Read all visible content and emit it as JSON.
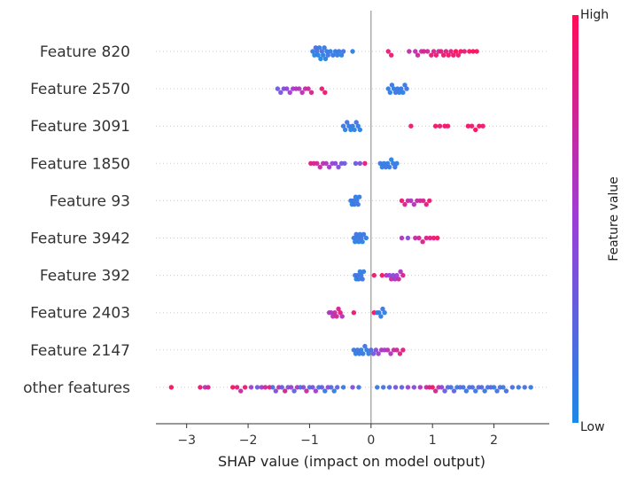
{
  "chart_data": {
    "type": "scatter",
    "subtype": "shap-beeswarm",
    "title": "",
    "xlabel": "SHAP value (impact on model output)",
    "ylabel": "",
    "xlim": [
      -3.5,
      2.9
    ],
    "xticks": [
      -3,
      -2,
      -1,
      0,
      1,
      2
    ],
    "xtick_labels": [
      "−3",
      "−2",
      "−1",
      "0",
      "1",
      "2"
    ],
    "zero_line": 0,
    "grid": false,
    "colorbar": {
      "label": "Feature value",
      "high_label": "High",
      "low_label": "Low",
      "colors": [
        "#1e88e5",
        "#ff0d57"
      ]
    },
    "features": [
      {
        "name": "Feature 820",
        "points": [
          [
            -0.95,
            0.1
          ],
          [
            -0.92,
            0.0
          ],
          [
            -0.9,
            0.2
          ],
          [
            -0.88,
            0.15
          ],
          [
            -0.86,
            0.05
          ],
          [
            -0.84,
            0.1
          ],
          [
            -0.82,
            0.0
          ],
          [
            -0.8,
            0.15
          ],
          [
            -0.78,
            0.05
          ],
          [
            -0.76,
            0.1
          ],
          [
            -0.74,
            0.05
          ],
          [
            -0.72,
            0.1
          ],
          [
            -0.7,
            0.15
          ],
          [
            -0.66,
            0.05
          ],
          [
            -0.62,
            0.1
          ],
          [
            -0.58,
            0.1
          ],
          [
            -0.55,
            0.05
          ],
          [
            -0.52,
            0.1
          ],
          [
            -0.48,
            0.05
          ],
          [
            -0.45,
            0.15
          ],
          [
            -0.3,
            0.05
          ],
          [
            0.28,
            0.85
          ],
          [
            0.33,
            0.9
          ],
          [
            0.62,
            0.7
          ],
          [
            0.72,
            0.65
          ],
          [
            0.76,
            0.75
          ],
          [
            0.82,
            0.7
          ],
          [
            0.86,
            0.8
          ],
          [
            0.92,
            0.75
          ],
          [
            0.98,
            0.85
          ],
          [
            1.02,
            0.8
          ],
          [
            1.06,
            0.9
          ],
          [
            1.1,
            0.75
          ],
          [
            1.14,
            0.85
          ],
          [
            1.18,
            0.9
          ],
          [
            1.22,
            0.8
          ],
          [
            1.26,
            0.95
          ],
          [
            1.3,
            0.85
          ],
          [
            1.34,
            0.9
          ],
          [
            1.38,
            1.0
          ],
          [
            1.42,
            0.9
          ],
          [
            1.46,
            0.95
          ],
          [
            1.52,
            0.85
          ],
          [
            1.6,
            0.95
          ],
          [
            1.66,
            1.0
          ],
          [
            1.72,
            0.95
          ]
        ]
      },
      {
        "name": "Feature 2570",
        "points": [
          [
            -1.52,
            0.3
          ],
          [
            -1.47,
            0.35
          ],
          [
            -1.42,
            0.4
          ],
          [
            -1.37,
            0.45
          ],
          [
            -1.32,
            0.5
          ],
          [
            -1.27,
            0.55
          ],
          [
            -1.22,
            0.6
          ],
          [
            -1.17,
            0.6
          ],
          [
            -1.12,
            0.65
          ],
          [
            -1.07,
            0.7
          ],
          [
            -1.02,
            0.75
          ],
          [
            -0.97,
            0.8
          ],
          [
            -0.8,
            0.9
          ],
          [
            -0.75,
            0.9
          ],
          [
            0.28,
            0.1
          ],
          [
            0.31,
            0.05
          ],
          [
            0.34,
            0.1
          ],
          [
            0.37,
            0.05
          ],
          [
            0.4,
            0.15
          ],
          [
            0.43,
            0.1
          ],
          [
            0.46,
            0.05
          ],
          [
            0.49,
            0.1
          ],
          [
            0.52,
            0.05
          ],
          [
            0.55,
            0.1
          ],
          [
            0.58,
            0.15
          ]
        ]
      },
      {
        "name": "Feature 3091",
        "points": [
          [
            -0.45,
            0.1
          ],
          [
            -0.42,
            0.05
          ],
          [
            -0.39,
            0.15
          ],
          [
            -0.36,
            0.1
          ],
          [
            -0.33,
            0.05
          ],
          [
            -0.3,
            0.1
          ],
          [
            -0.27,
            0.05
          ],
          [
            -0.24,
            0.15
          ],
          [
            -0.21,
            0.1
          ],
          [
            -0.18,
            0.05
          ],
          [
            0.65,
            0.9
          ],
          [
            1.05,
            0.95
          ],
          [
            1.12,
            0.9
          ],
          [
            1.2,
            0.95
          ],
          [
            1.25,
            0.9
          ],
          [
            1.58,
            0.95
          ],
          [
            1.64,
            0.9
          ],
          [
            1.7,
            1.0
          ],
          [
            1.76,
            0.95
          ],
          [
            1.82,
            0.9
          ]
        ]
      },
      {
        "name": "Feature 1850",
        "points": [
          [
            -0.98,
            0.85
          ],
          [
            -0.93,
            0.8
          ],
          [
            -0.88,
            0.75
          ],
          [
            -0.83,
            0.7
          ],
          [
            -0.78,
            0.65
          ],
          [
            -0.73,
            0.6
          ],
          [
            -0.68,
            0.55
          ],
          [
            -0.63,
            0.5
          ],
          [
            -0.58,
            0.45
          ],
          [
            -0.53,
            0.4
          ],
          [
            -0.48,
            0.35
          ],
          [
            -0.43,
            0.3
          ],
          [
            -0.25,
            0.3
          ],
          [
            -0.18,
            0.35
          ],
          [
            -0.1,
            0.9
          ],
          [
            0.15,
            0.1
          ],
          [
            0.18,
            0.05
          ],
          [
            0.21,
            0.1
          ],
          [
            0.24,
            0.15
          ],
          [
            0.27,
            0.05
          ],
          [
            0.3,
            0.1
          ],
          [
            0.33,
            0.05
          ],
          [
            0.36,
            0.1
          ],
          [
            0.39,
            0.15
          ],
          [
            0.42,
            0.05
          ]
        ]
      },
      {
        "name": "Feature 93",
        "points": [
          [
            -0.33,
            0.1
          ],
          [
            -0.31,
            0.05
          ],
          [
            -0.29,
            0.15
          ],
          [
            -0.27,
            0.1
          ],
          [
            -0.25,
            0.05
          ],
          [
            -0.23,
            0.1
          ],
          [
            -0.21,
            0.15
          ],
          [
            -0.19,
            0.1
          ],
          [
            0.5,
            0.9
          ],
          [
            0.55,
            0.8
          ],
          [
            0.6,
            0.7
          ],
          [
            0.65,
            0.6
          ],
          [
            0.7,
            0.65
          ],
          [
            0.75,
            0.7
          ],
          [
            0.8,
            0.75
          ],
          [
            0.85,
            0.8
          ],
          [
            0.9,
            0.85
          ],
          [
            0.95,
            0.9
          ]
        ]
      },
      {
        "name": "Feature 3942",
        "points": [
          [
            -0.28,
            0.1
          ],
          [
            -0.26,
            0.05
          ],
          [
            -0.24,
            0.15
          ],
          [
            -0.22,
            0.1
          ],
          [
            -0.2,
            0.05
          ],
          [
            -0.18,
            0.1
          ],
          [
            -0.16,
            0.15
          ],
          [
            -0.14,
            0.05
          ],
          [
            -0.12,
            0.1
          ],
          [
            -0.08,
            0.05
          ],
          [
            0.5,
            0.6
          ],
          [
            0.6,
            0.4
          ],
          [
            0.72,
            0.7
          ],
          [
            0.78,
            0.75
          ],
          [
            0.84,
            0.8
          ],
          [
            0.9,
            0.8
          ],
          [
            0.96,
            0.85
          ],
          [
            1.02,
            0.9
          ],
          [
            1.08,
            0.95
          ]
        ]
      },
      {
        "name": "Feature 392",
        "points": [
          [
            -0.26,
            0.1
          ],
          [
            -0.24,
            0.05
          ],
          [
            -0.22,
            0.15
          ],
          [
            -0.2,
            0.1
          ],
          [
            -0.18,
            0.05
          ],
          [
            -0.16,
            0.1
          ],
          [
            -0.14,
            0.15
          ],
          [
            -0.12,
            0.1
          ],
          [
            0.05,
            0.9
          ],
          [
            0.18,
            0.95
          ],
          [
            0.25,
            0.6
          ],
          [
            0.3,
            0.5
          ],
          [
            0.33,
            0.7
          ],
          [
            0.36,
            0.4
          ],
          [
            0.39,
            0.6
          ],
          [
            0.42,
            0.5
          ],
          [
            0.45,
            0.7
          ],
          [
            0.48,
            0.6
          ],
          [
            0.52,
            0.8
          ]
        ]
      },
      {
        "name": "Feature 2403",
        "points": [
          [
            -0.68,
            0.55
          ],
          [
            -0.65,
            0.6
          ],
          [
            -0.62,
            0.65
          ],
          [
            -0.59,
            0.7
          ],
          [
            -0.56,
            0.75
          ],
          [
            -0.53,
            0.8
          ],
          [
            -0.5,
            0.85
          ],
          [
            -0.47,
            0.6
          ],
          [
            -0.28,
            0.9
          ],
          [
            0.05,
            0.95
          ],
          [
            0.1,
            0.1
          ],
          [
            0.13,
            0.05
          ],
          [
            0.16,
            0.1
          ],
          [
            0.19,
            0.15
          ],
          [
            0.22,
            0.05
          ]
        ]
      },
      {
        "name": "Feature 2147",
        "points": [
          [
            -0.28,
            0.1
          ],
          [
            -0.25,
            0.05
          ],
          [
            -0.22,
            0.15
          ],
          [
            -0.19,
            0.1
          ],
          [
            -0.16,
            0.05
          ],
          [
            -0.13,
            0.1
          ],
          [
            -0.1,
            0.15
          ],
          [
            -0.07,
            0.05
          ],
          [
            -0.04,
            0.1
          ],
          [
            0.0,
            0.2
          ],
          [
            0.04,
            0.3
          ],
          [
            0.08,
            0.4
          ],
          [
            0.12,
            0.5
          ],
          [
            0.17,
            0.6
          ],
          [
            0.22,
            0.55
          ],
          [
            0.27,
            0.65
          ],
          [
            0.32,
            0.6
          ],
          [
            0.37,
            0.7
          ],
          [
            0.42,
            0.75
          ],
          [
            0.47,
            0.8
          ],
          [
            0.52,
            0.85
          ]
        ]
      },
      {
        "name": "other features",
        "points": [
          [
            -3.25,
            1.0
          ],
          [
            -2.78,
            0.9
          ],
          [
            -2.7,
            0.6
          ],
          [
            -2.65,
            0.8
          ],
          [
            -2.25,
            0.95
          ],
          [
            -2.18,
            0.85
          ],
          [
            -2.12,
            0.7
          ],
          [
            -2.05,
            0.9
          ],
          [
            -1.95,
            0.5
          ],
          [
            -1.85,
            0.3
          ],
          [
            -1.78,
            0.55
          ],
          [
            -1.72,
            0.75
          ],
          [
            -1.65,
            0.85
          ],
          [
            -1.6,
            0.2
          ],
          [
            -1.55,
            0.4
          ],
          [
            -1.5,
            0.65
          ],
          [
            -1.45,
            0.3
          ],
          [
            -1.4,
            0.8
          ],
          [
            -1.35,
            0.35
          ],
          [
            -1.3,
            0.5
          ],
          [
            -1.25,
            0.25
          ],
          [
            -1.2,
            0.6
          ],
          [
            -1.15,
            0.15
          ],
          [
            -1.1,
            0.4
          ],
          [
            -1.05,
            0.7
          ],
          [
            -1.0,
            0.2
          ],
          [
            -0.95,
            0.35
          ],
          [
            -0.9,
            0.55
          ],
          [
            -0.85,
            0.15
          ],
          [
            -0.8,
            0.3
          ],
          [
            -0.75,
            0.1
          ],
          [
            -0.7,
            0.45
          ],
          [
            -0.65,
            0.2
          ],
          [
            -0.6,
            0.1
          ],
          [
            -0.55,
            0.25
          ],
          [
            -0.45,
            0.1
          ],
          [
            -0.3,
            0.4
          ],
          [
            -0.2,
            0.15
          ],
          [
            0.1,
            0.1
          ],
          [
            0.2,
            0.15
          ],
          [
            0.3,
            0.2
          ],
          [
            0.4,
            0.35
          ],
          [
            0.5,
            0.25
          ],
          [
            0.6,
            0.5
          ],
          [
            0.7,
            0.4
          ],
          [
            0.8,
            0.6
          ],
          [
            0.9,
            0.7
          ],
          [
            0.95,
            0.85
          ],
          [
            1.0,
            0.95
          ],
          [
            1.05,
            0.8
          ],
          [
            1.1,
            0.65
          ],
          [
            1.15,
            0.45
          ],
          [
            1.2,
            0.3
          ],
          [
            1.25,
            0.2
          ],
          [
            1.3,
            0.15
          ],
          [
            1.35,
            0.25
          ],
          [
            1.4,
            0.1
          ],
          [
            1.45,
            0.2
          ],
          [
            1.5,
            0.15
          ],
          [
            1.55,
            0.1
          ],
          [
            1.6,
            0.2
          ],
          [
            1.65,
            0.15
          ],
          [
            1.7,
            0.1
          ],
          [
            1.75,
            0.25
          ],
          [
            1.8,
            0.2
          ],
          [
            1.85,
            0.1
          ],
          [
            1.9,
            0.15
          ],
          [
            1.95,
            0.2
          ],
          [
            2.0,
            0.1
          ],
          [
            2.05,
            0.15
          ],
          [
            2.1,
            0.2
          ],
          [
            2.15,
            0.1
          ],
          [
            2.2,
            0.15
          ],
          [
            2.3,
            0.2
          ],
          [
            2.4,
            0.1
          ],
          [
            2.5,
            0.15
          ],
          [
            2.6,
            0.1
          ]
        ]
      }
    ]
  }
}
